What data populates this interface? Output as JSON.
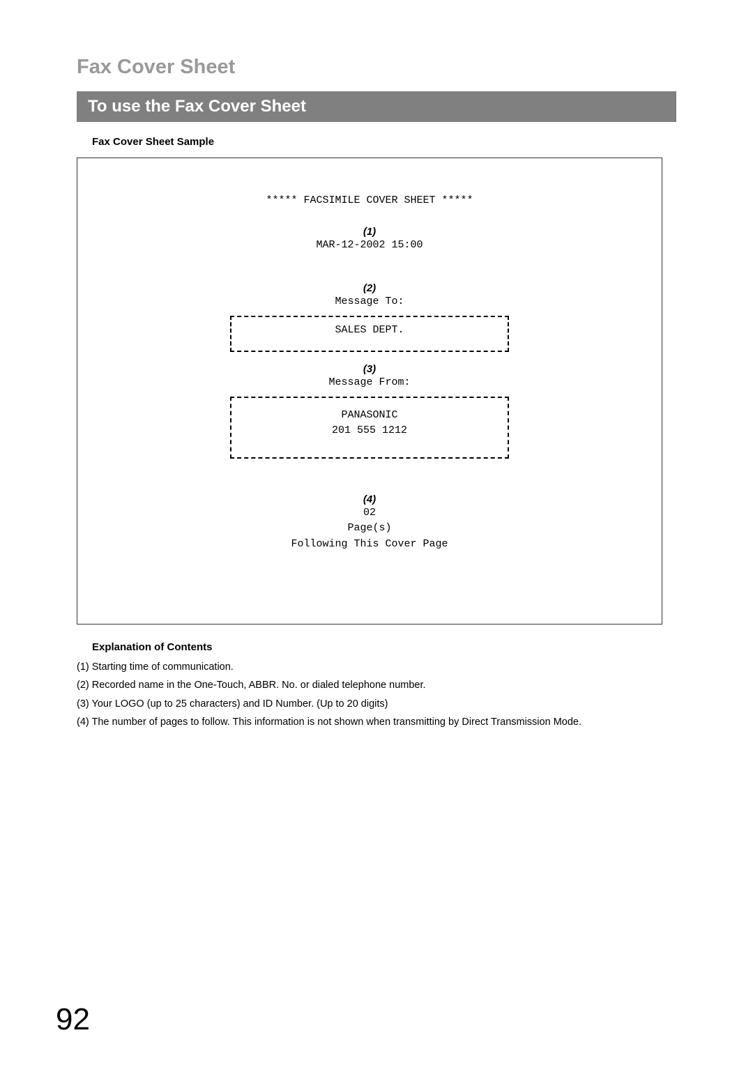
{
  "page_title": "Fax Cover Sheet",
  "section_title": "To use the Fax Cover Sheet",
  "sample_label": "Fax Cover Sheet Sample",
  "cover": {
    "heading": "***** FACSIMILE COVER SHEET *****",
    "callout1": "(1)",
    "datetime": "MAR-12-2002 15:00",
    "callout2": "(2)",
    "to_label": "Message To:",
    "to_value": "SALES DEPT.",
    "callout3": "(3)",
    "from_label": "Message From:",
    "from_name": "PANASONIC",
    "from_number": "201 555 1212",
    "callout4": "(4)",
    "pages_count": "02",
    "pages_label": "Page(s)",
    "pages_note": "Following This Cover Page"
  },
  "explanation_title": "Explanation of Contents",
  "explanations": [
    "(1) Starting time of communication.",
    "(2) Recorded name in the One-Touch, ABBR. No. or dialed telephone number.",
    "(3) Your LOGO (up to 25 characters) and ID Number. (Up to 20 digits)",
    "(4) The number of pages to follow. This information is not shown when transmitting by Direct Transmission Mode."
  ],
  "page_number": "92"
}
